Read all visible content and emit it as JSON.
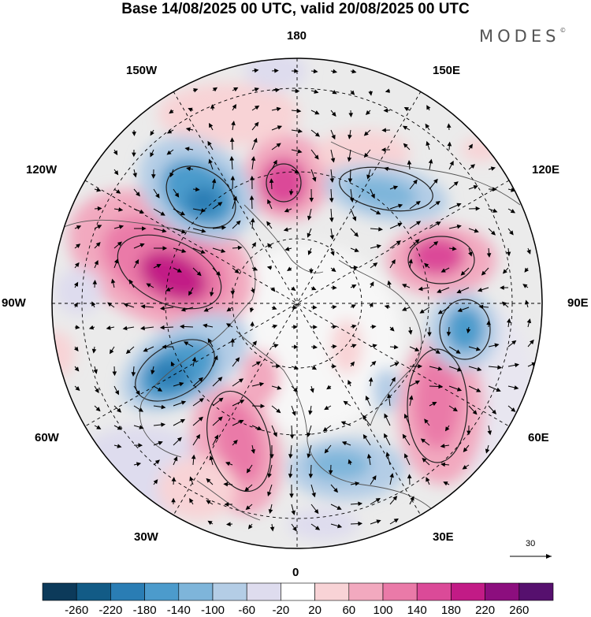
{
  "title": "Base 14/08/2025 00 UTC, valid 20/08/2025 00 UTC",
  "logo": {
    "text": "MODES",
    "mark": "©"
  },
  "longitude_labels": {
    "top": "180",
    "bottom": "0",
    "left": "90W",
    "right": "90E",
    "upper_left": "150W",
    "upper_right": "150E",
    "mid_left_upper": "120W",
    "mid_right_upper": "120E",
    "mid_left_lower": "60W",
    "mid_right_lower": "60E",
    "lower_left": "30W",
    "lower_right": "30E"
  },
  "vector_reference": {
    "value": "30"
  },
  "colorbar": {
    "ticks": [
      "-260",
      "-220",
      "-180",
      "-140",
      "-100",
      "-60",
      "-20",
      "20",
      "60",
      "100",
      "140",
      "180",
      "220",
      "260"
    ],
    "colors": [
      "#0c3a5a",
      "#125b86",
      "#2a7db4",
      "#4c9bcc",
      "#7eb5da",
      "#b4cde6",
      "#dedcee",
      "#ffffff",
      "#f8d3d6",
      "#f2a9bf",
      "#ea7aa8",
      "#db4a98",
      "#c21b86",
      "#8c0e7e",
      "#56106e"
    ]
  }
}
